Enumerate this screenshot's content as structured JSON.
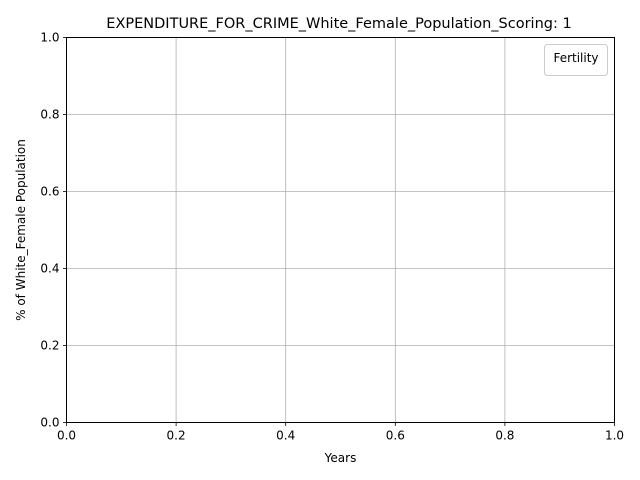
{
  "chart_data": {
    "type": "line",
    "title": "EXPENDITURE_FOR_CRIME_White_Female_Population_Scoring: 1",
    "xlabel": "Years",
    "ylabel": "% of White_Female Population",
    "xlim": [
      0.0,
      1.0
    ],
    "ylim": [
      0.0,
      1.0
    ],
    "xticks": [
      "0.0",
      "0.2",
      "0.4",
      "0.6",
      "0.8",
      "1.0"
    ],
    "yticks": [
      "0.0",
      "0.2",
      "0.4",
      "0.6",
      "0.8",
      "1.0"
    ],
    "grid": true,
    "legend": {
      "title": "Fertility",
      "placement": "top-right",
      "entries": []
    },
    "series": []
  },
  "colors": {
    "background": "#ffffff",
    "axes": "#000000",
    "grid": "#b0b0b0",
    "legend_border": "#cccccc"
  }
}
